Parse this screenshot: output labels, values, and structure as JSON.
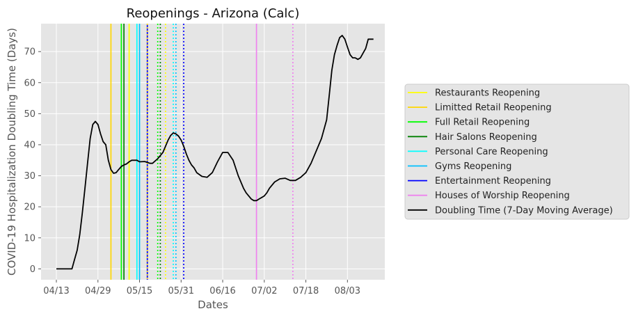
{
  "chart_data": {
    "type": "line",
    "title": "Reopenings - Arizona (Calc)",
    "xlabel": "Dates",
    "ylabel": "COVID-19 Hospitalization Doubling Time (Days)",
    "x_tick_labels": [
      "04/13",
      "04/29",
      "05/15",
      "05/31",
      "06/16",
      "07/02",
      "07/18",
      "08/03"
    ],
    "y_ticks": [
      0,
      10,
      20,
      30,
      40,
      50,
      60,
      70
    ],
    "ylim": [
      -3.5,
      79
    ],
    "grid": true,
    "legend_position": "outside right",
    "events": [
      {
        "name": "Restaurants Reopening",
        "color": "#ffff00",
        "style": "solid",
        "dates": [
          "05/11"
        ]
      },
      {
        "name": "Limitted Retail Reopening",
        "color": "#ffd700",
        "style": "solid",
        "dates": [
          "05/04"
        ]
      },
      {
        "name": "Full Retail Reopening",
        "color": "#00ff00",
        "style": "solid",
        "dates": [
          "05/08"
        ]
      },
      {
        "name": "Hair Salons Reopening",
        "color": "#008000",
        "style": "solid",
        "dates": [
          "05/09"
        ]
      },
      {
        "name": "Personal Care Reopening",
        "color": "#00ffff",
        "style": "solid",
        "dates": [
          "05/14"
        ]
      },
      {
        "name": "Gyms Reopening",
        "color": "#00bfff",
        "style": "solid",
        "dates": [
          "05/15"
        ]
      },
      {
        "name": "Entertainment Reopening",
        "color": "#0000ff",
        "style": "solid",
        "dates": [
          "05/18"
        ]
      },
      {
        "name": "Houses of Worship Reopening",
        "color": "#ee82ee",
        "style": "solid",
        "dates": [
          "06/29"
        ]
      }
    ],
    "event_followups": [
      {
        "color": "#ffff00",
        "dates": [
          "05/25"
        ]
      },
      {
        "color": "#ffd700",
        "dates": [
          "05/18"
        ]
      },
      {
        "color": "#00ff00",
        "dates": [
          "05/22"
        ]
      },
      {
        "color": "#008000",
        "dates": [
          "05/23"
        ]
      },
      {
        "color": "#00ffff",
        "dates": [
          "05/28"
        ]
      },
      {
        "color": "#00bfff",
        "dates": [
          "05/29"
        ]
      },
      {
        "color": "#0000ff",
        "dates": [
          "06/01"
        ]
      },
      {
        "color": "#ee82ee",
        "dates": [
          "07/13"
        ]
      }
    ],
    "series": [
      {
        "name": "Doubling Time (7-Day Moving Average)",
        "color": "#000000",
        "x": [
          "04/13",
          "04/15",
          "04/17",
          "04/19",
          "04/20",
          "04/21",
          "04/22",
          "04/23",
          "04/24",
          "04/25",
          "04/26",
          "04/27",
          "04/28",
          "04/29",
          "04/30",
          "05/01",
          "05/02",
          "05/03",
          "05/04",
          "05/05",
          "05/06",
          "05/07",
          "05/08",
          "05/09",
          "05/10",
          "05/11",
          "05/12",
          "05/14",
          "05/15",
          "05/17",
          "05/19",
          "05/20",
          "05/22",
          "05/24",
          "05/26",
          "05/27",
          "05/28",
          "05/29",
          "05/30",
          "05/31",
          "06/01",
          "06/02",
          "06/03",
          "06/04",
          "06/05",
          "06/06",
          "06/08",
          "06/10",
          "06/12",
          "06/14",
          "06/16",
          "06/18",
          "06/20",
          "06/22",
          "06/24",
          "06/25",
          "06/26",
          "06/27",
          "06/28",
          "06/29",
          "06/30",
          "07/01",
          "07/02",
          "07/03",
          "07/04",
          "07/06",
          "07/08",
          "07/10",
          "07/12",
          "07/14",
          "07/16",
          "07/18",
          "07/20",
          "07/22",
          "07/24",
          "07/26",
          "07/27",
          "07/28",
          "07/29",
          "07/30",
          "07/31",
          "08/01",
          "08/02",
          "08/03",
          "08/04",
          "08/05",
          "08/06",
          "08/07",
          "08/08",
          "08/09",
          "08/10",
          "08/11",
          "08/12",
          "08/13"
        ],
        "y": [
          0,
          0,
          0,
          0,
          3,
          6,
          11,
          18,
          26,
          34,
          42,
          46.5,
          47.5,
          46.5,
          43.5,
          41,
          40,
          35,
          32,
          30.8,
          31,
          32,
          33,
          33.5,
          33.8,
          34.5,
          35,
          35,
          34.5,
          34.6,
          34,
          34,
          35.5,
          37.5,
          41.5,
          43,
          43.8,
          43.5,
          42.8,
          41.5,
          39.5,
          37,
          35,
          33.5,
          32.5,
          31,
          29.8,
          29.5,
          31,
          34.5,
          37.5,
          37.5,
          35,
          30,
          26,
          24.5,
          23.5,
          22.5,
          22,
          22,
          22.5,
          23,
          23.5,
          24.5,
          26,
          28,
          29,
          29.2,
          28.5,
          28.5,
          29.5,
          31,
          34,
          38,
          42,
          48,
          56,
          64,
          69,
          72,
          74.5,
          75.2,
          74,
          71.5,
          69,
          68,
          68,
          67.5,
          68,
          69.5,
          71,
          74,
          74,
          74
        ]
      }
    ]
  }
}
